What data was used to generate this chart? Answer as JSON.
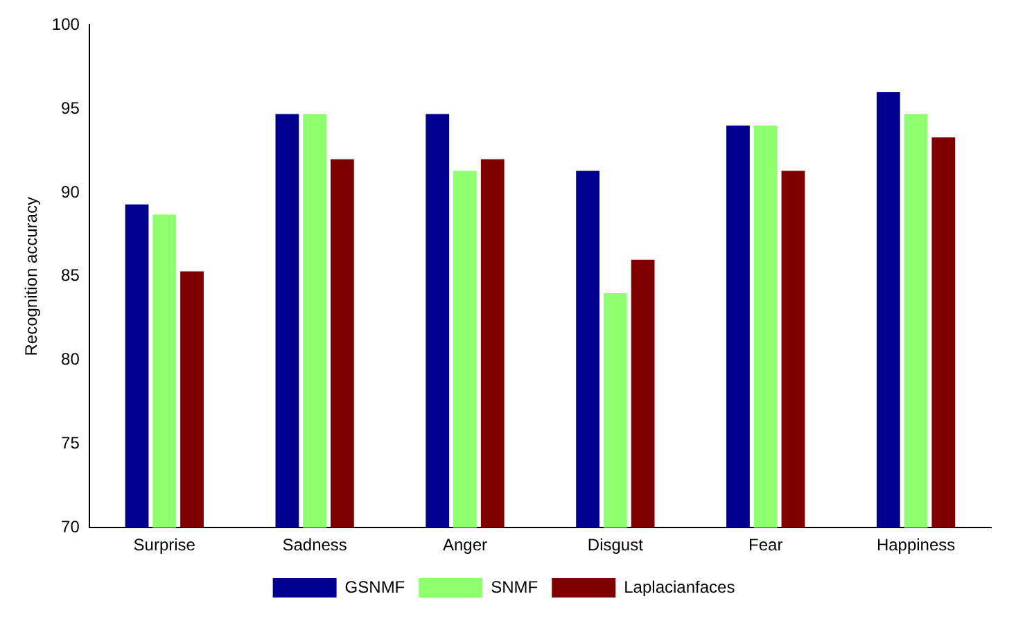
{
  "chart_data": {
    "type": "bar",
    "ylabel": "Recognition accuracy",
    "categories": [
      "Surprise",
      "Sadness",
      "Anger",
      "Disgust",
      "Fear",
      "Happiness"
    ],
    "series": [
      {
        "name": "GSNMF",
        "color": "#00008f",
        "values": [
          89.3,
          94.7,
          94.7,
          91.3,
          94,
          96
        ]
      },
      {
        "name": "SNMF",
        "color": "#8fff6f",
        "values": [
          88.7,
          94.7,
          91.3,
          84,
          94,
          94.7
        ]
      },
      {
        "name": "Laplacianfaces",
        "color": "#800000",
        "values": [
          85.3,
          92,
          92,
          86,
          91.3,
          93.3
        ]
      }
    ],
    "ylim": [
      70,
      100
    ],
    "yticks": [
      70,
      75,
      80,
      85,
      90,
      95,
      100
    ],
    "grid": false,
    "legend": "bottom"
  }
}
